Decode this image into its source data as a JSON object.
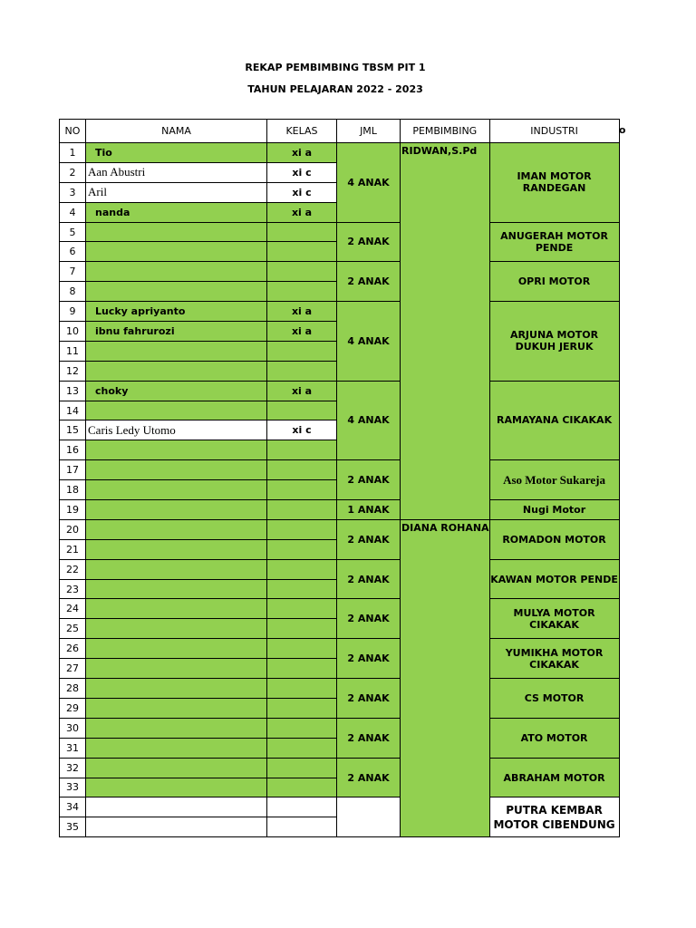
{
  "title": "REKAP PEMBIMBING TBSM PIT 1",
  "subtitle": "TAHUN PELAJARAN 2022 - 2023",
  "extra_header": "no",
  "headers": {
    "no": "NO",
    "nama": "NAMA",
    "kelas": "KELAS",
    "jml": "JML",
    "pembimbing": "PEMBIMBING",
    "industri": "INDUSTRI"
  },
  "colors": {
    "green": "#92d050",
    "white": "#ffffff"
  },
  "rows": [
    {
      "no": "1",
      "nama": "Tio",
      "kelas": "xi a"
    },
    {
      "no": "2",
      "nama": "Aan Abustri",
      "kelas": "xi c",
      "white": true
    },
    {
      "no": "3",
      "nama": "Aril",
      "kelas": "xi c",
      "white": true
    },
    {
      "no": "4",
      "nama": "nanda",
      "kelas": "xi a"
    },
    {
      "no": "5",
      "nama": "",
      "kelas": ""
    },
    {
      "no": "6",
      "nama": "",
      "kelas": ""
    },
    {
      "no": "7",
      "nama": "",
      "kelas": ""
    },
    {
      "no": "8",
      "nama": "",
      "kelas": ""
    },
    {
      "no": "9",
      "nama": "Lucky apriyanto",
      "kelas": "xi a"
    },
    {
      "no": "10",
      "nama": "ibnu fahrurozi",
      "kelas": "xi a"
    },
    {
      "no": "11",
      "nama": "",
      "kelas": ""
    },
    {
      "no": "12",
      "nama": "",
      "kelas": ""
    },
    {
      "no": "13",
      "nama": "choky",
      "kelas": "xi a"
    },
    {
      "no": "14",
      "nama": "",
      "kelas": ""
    },
    {
      "no": "15",
      "nama": "Caris Ledy Utomo",
      "kelas": "xi c",
      "white": true
    },
    {
      "no": "16",
      "nama": "",
      "kelas": ""
    },
    {
      "no": "17",
      "nama": "",
      "kelas": ""
    },
    {
      "no": "18",
      "nama": "",
      "kelas": ""
    },
    {
      "no": "19",
      "nama": "",
      "kelas": ""
    },
    {
      "no": "20",
      "nama": "",
      "kelas": ""
    },
    {
      "no": "21",
      "nama": "",
      "kelas": ""
    },
    {
      "no": "22",
      "nama": "",
      "kelas": ""
    },
    {
      "no": "23",
      "nama": "",
      "kelas": ""
    },
    {
      "no": "24",
      "nama": "",
      "kelas": ""
    },
    {
      "no": "25",
      "nama": "",
      "kelas": ""
    },
    {
      "no": "26",
      "nama": "",
      "kelas": ""
    },
    {
      "no": "27",
      "nama": "",
      "kelas": ""
    },
    {
      "no": "28",
      "nama": "",
      "kelas": ""
    },
    {
      "no": "29",
      "nama": "",
      "kelas": ""
    },
    {
      "no": "30",
      "nama": "",
      "kelas": ""
    },
    {
      "no": "31",
      "nama": "",
      "kelas": ""
    },
    {
      "no": "32",
      "nama": "",
      "kelas": ""
    },
    {
      "no": "33",
      "nama": "",
      "kelas": ""
    },
    {
      "no": "34",
      "nama": "",
      "kelas": "",
      "blank": true
    },
    {
      "no": "35",
      "nama": "",
      "kelas": "",
      "blank": true
    }
  ],
  "groups": [
    {
      "span": 4,
      "jml": "4 ANAK",
      "industri": "IMAN MOTOR RANDEGAN"
    },
    {
      "span": 2,
      "jml": "2 ANAK",
      "industri": "ANUGERAH MOTOR PENDE"
    },
    {
      "span": 2,
      "jml": "2 ANAK",
      "industri": "OPRI MOTOR"
    },
    {
      "span": 4,
      "jml": "4 ANAK",
      "industri": "ARJUNA MOTOR DUKUH JERUK"
    },
    {
      "span": 4,
      "jml": "4 ANAK",
      "industri": "RAMAYANA CIKAKAK"
    },
    {
      "span": 2,
      "jml": "2 ANAK",
      "industri": "Aso Motor Sukareja",
      "serif": true
    },
    {
      "span": 1,
      "jml": "1 ANAK",
      "industri": "Nugi Motor"
    },
    {
      "span": 2,
      "jml": "2 ANAK",
      "industri": "ROMADON MOTOR"
    },
    {
      "span": 2,
      "jml": "2 ANAK",
      "industri": "KAWAN MOTOR PENDE"
    },
    {
      "span": 2,
      "jml": "2 ANAK",
      "industri": "MULYA MOTOR CIKAKAK"
    },
    {
      "span": 2,
      "jml": "2 ANAK",
      "industri": "YUMIKHA MOTOR CIKAKAK"
    },
    {
      "span": 2,
      "jml": "2 ANAK",
      "industri": "CS MOTOR"
    },
    {
      "span": 2,
      "jml": "2 ANAK",
      "industri": "ATO MOTOR"
    },
    {
      "span": 2,
      "jml": "2 ANAK",
      "industri": "ABRAHAM MOTOR"
    },
    {
      "span": 2,
      "jml": "",
      "industri": "PUTRA KEMBAR MOTOR CIBENDUNG",
      "white": true
    }
  ],
  "pembimbing": [
    {
      "span": 19,
      "name": "RIDWAN,S.Pd"
    },
    {
      "span": 16,
      "name": "DIANA ROHANA"
    }
  ]
}
